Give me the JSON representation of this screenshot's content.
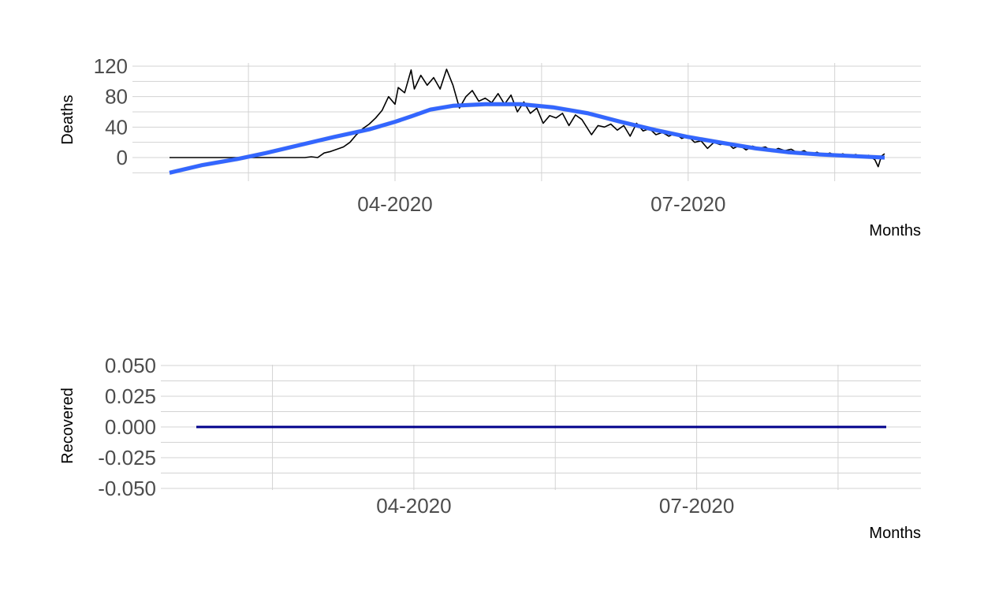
{
  "chart_data": [
    {
      "type": "line",
      "ylabel": "Deaths",
      "xlabel": "Months",
      "x_ticks": [
        "04-2020",
        "07-2020"
      ],
      "y_ticks": [
        0,
        40,
        80,
        120
      ],
      "grid": true,
      "xlim": [
        "2020-01-22",
        "2020-08-31"
      ],
      "ylim": [
        -28,
        120
      ],
      "colors": {
        "observed": "#000000",
        "smooth": "#3366ff",
        "band": "#cccccc"
      },
      "series": [
        {
          "kind": "observed",
          "points": [
            [
              "2020-01-22",
              0
            ],
            [
              "2020-02-15",
              0
            ],
            [
              "2020-03-04",
              0
            ],
            [
              "2020-03-06",
              1
            ],
            [
              "2020-03-08",
              0
            ],
            [
              "2020-03-10",
              6
            ],
            [
              "2020-03-12",
              8
            ],
            [
              "2020-03-14",
              11
            ],
            [
              "2020-03-16",
              14
            ],
            [
              "2020-03-18",
              20
            ],
            [
              "2020-03-20",
              30
            ],
            [
              "2020-03-22",
              38
            ],
            [
              "2020-03-24",
              44
            ],
            [
              "2020-03-26",
              52
            ],
            [
              "2020-03-28",
              62
            ],
            [
              "2020-03-30",
              80
            ],
            [
              "2020-04-01",
              70
            ],
            [
              "2020-04-02",
              92
            ],
            [
              "2020-04-04",
              85
            ],
            [
              "2020-04-06",
              115
            ],
            [
              "2020-04-07",
              90
            ],
            [
              "2020-04-09",
              108
            ],
            [
              "2020-04-11",
              95
            ],
            [
              "2020-04-13",
              105
            ],
            [
              "2020-04-15",
              90
            ],
            [
              "2020-04-17",
              116
            ],
            [
              "2020-04-19",
              95
            ],
            [
              "2020-04-21",
              65
            ],
            [
              "2020-04-23",
              80
            ],
            [
              "2020-04-25",
              88
            ],
            [
              "2020-04-27",
              74
            ],
            [
              "2020-04-29",
              78
            ],
            [
              "2020-05-01",
              72
            ],
            [
              "2020-05-03",
              84
            ],
            [
              "2020-05-05",
              70
            ],
            [
              "2020-05-07",
              82
            ],
            [
              "2020-05-09",
              60
            ],
            [
              "2020-05-11",
              73
            ],
            [
              "2020-05-13",
              58
            ],
            [
              "2020-05-15",
              65
            ],
            [
              "2020-05-17",
              45
            ],
            [
              "2020-05-19",
              55
            ],
            [
              "2020-05-21",
              52
            ],
            [
              "2020-05-23",
              58
            ],
            [
              "2020-05-25",
              42
            ],
            [
              "2020-05-27",
              56
            ],
            [
              "2020-05-29",
              50
            ],
            [
              "2020-06-01",
              30
            ],
            [
              "2020-06-03",
              42
            ],
            [
              "2020-06-05",
              40
            ],
            [
              "2020-06-07",
              44
            ],
            [
              "2020-06-09",
              36
            ],
            [
              "2020-06-11",
              42
            ],
            [
              "2020-06-13",
              28
            ],
            [
              "2020-06-15",
              45
            ],
            [
              "2020-06-17",
              35
            ],
            [
              "2020-06-19",
              38
            ],
            [
              "2020-06-21",
              30
            ],
            [
              "2020-06-23",
              33
            ],
            [
              "2020-06-25",
              28
            ],
            [
              "2020-06-27",
              32
            ],
            [
              "2020-06-29",
              25
            ],
            [
              "2020-07-01",
              28
            ],
            [
              "2020-07-03",
              20
            ],
            [
              "2020-07-05",
              22
            ],
            [
              "2020-07-07",
              12
            ],
            [
              "2020-07-09",
              20
            ],
            [
              "2020-07-11",
              17
            ],
            [
              "2020-07-13",
              20
            ],
            [
              "2020-07-15",
              12
            ],
            [
              "2020-07-17",
              16
            ],
            [
              "2020-07-19",
              10
            ],
            [
              "2020-07-21",
              15
            ],
            [
              "2020-07-23",
              12
            ],
            [
              "2020-07-25",
              14
            ],
            [
              "2020-07-27",
              8
            ],
            [
              "2020-07-29",
              12
            ],
            [
              "2020-07-31",
              9
            ],
            [
              "2020-08-02",
              11
            ],
            [
              "2020-08-04",
              6
            ],
            [
              "2020-08-06",
              9
            ],
            [
              "2020-08-08",
              4
            ],
            [
              "2020-08-10",
              7
            ],
            [
              "2020-08-12",
              3
            ],
            [
              "2020-08-14",
              6
            ],
            [
              "2020-08-16",
              2
            ],
            [
              "2020-08-18",
              5
            ],
            [
              "2020-08-20",
              1
            ],
            [
              "2020-08-22",
              4
            ],
            [
              "2020-08-24",
              1
            ],
            [
              "2020-08-26",
              3
            ],
            [
              "2020-08-28",
              -3
            ],
            [
              "2020-08-29",
              -12
            ],
            [
              "2020-08-30",
              2
            ],
            [
              "2020-08-31",
              5
            ]
          ]
        },
        {
          "kind": "smooth",
          "points": [
            [
              "2020-01-22",
              -20
            ],
            [
              "2020-02-01",
              -10
            ],
            [
              "2020-02-12",
              -2
            ],
            [
              "2020-02-21",
              6
            ],
            [
              "2020-03-03",
              17
            ],
            [
              "2020-03-13",
              27
            ],
            [
              "2020-03-24",
              37
            ],
            [
              "2020-04-01",
              47
            ],
            [
              "2020-04-06",
              54
            ],
            [
              "2020-04-12",
              63
            ],
            [
              "2020-04-19",
              68
            ],
            [
              "2020-04-29",
              70
            ],
            [
              "2020-05-10",
              70
            ],
            [
              "2020-05-20",
              66
            ],
            [
              "2020-05-31",
              58
            ],
            [
              "2020-06-10",
              47
            ],
            [
              "2020-06-21",
              36
            ],
            [
              "2020-07-01",
              27
            ],
            [
              "2020-07-12",
              19
            ],
            [
              "2020-07-22",
              12
            ],
            [
              "2020-08-01",
              7
            ],
            [
              "2020-08-11",
              4
            ],
            [
              "2020-08-21",
              2
            ],
            [
              "2020-08-31",
              0
            ]
          ]
        }
      ]
    },
    {
      "type": "line",
      "ylabel": "Recovered",
      "xlabel": "Months",
      "x_ticks": [
        "04-2020",
        "07-2020"
      ],
      "y_ticks": [
        "0.050",
        "0.025",
        "0.000",
        "-0.025",
        "-0.050"
      ],
      "grid": true,
      "xlim": [
        "2020-01-22",
        "2020-08-31"
      ],
      "ylim": [
        -0.05,
        0.05
      ],
      "colors": {
        "line": "#00008b"
      },
      "series": [
        {
          "points": [
            [
              "2020-01-22",
              0
            ],
            [
              "2020-08-31",
              0
            ]
          ]
        }
      ]
    }
  ]
}
